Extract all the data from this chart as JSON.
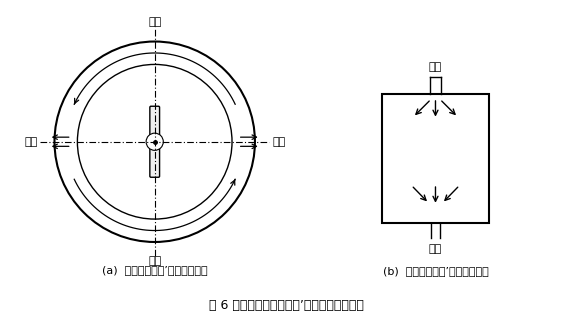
{
  "bg_color": "#ffffff",
  "line_color": "#000000",
  "label_a": "(a)  进料位置与排’气槽位置设置",
  "label_b": "(b)  进料位置与排’气槽位置设置",
  "caption": "图 6 为两种进料位置与排’气槽位置设置方式",
  "jin_liao": "进料",
  "pai_qi": "排气",
  "fontsize_small": 8,
  "fontsize_caption": 9
}
